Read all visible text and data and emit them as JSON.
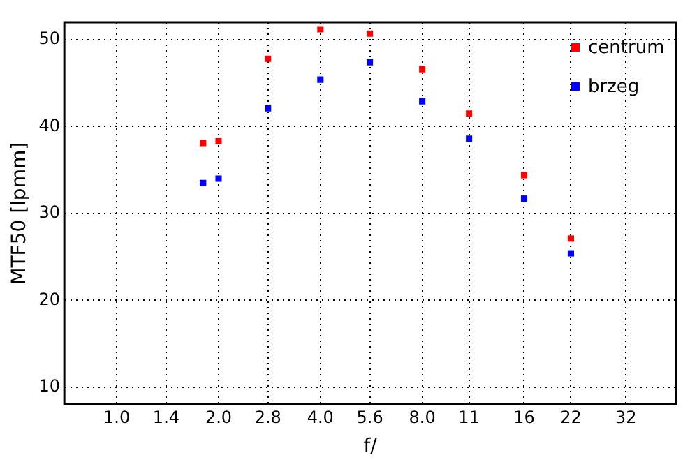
{
  "chart_data": {
    "type": "scatter",
    "xlabel": "f/",
    "ylabel": "MTF50 [lpmm]",
    "log": "x",
    "x": [
      1.8,
      2,
      2.8,
      4,
      5.6,
      8,
      11,
      16,
      22
    ],
    "series": [
      {
        "name": "centrum",
        "color": "#ff0000",
        "values": [
          38.1,
          38.3,
          47.8,
          51.2,
          50.7,
          46.6,
          41.5,
          34.4,
          27.1
        ]
      },
      {
        "name": "brzeg",
        "color": "#0000ff",
        "values": [
          33.5,
          34.0,
          42.1,
          45.4,
          47.4,
          42.9,
          38.6,
          31.7,
          25.4
        ]
      }
    ],
    "xlim": [
      0.72,
      45
    ],
    "ylim": [
      8,
      52
    ],
    "xticks": [
      {
        "value": 1,
        "label": "1.0"
      },
      1.4,
      {
        "value": 2,
        "label": "2.0"
      },
      2.8,
      {
        "value": 4,
        "label": "4.0"
      },
      5.6,
      {
        "value": 8,
        "label": "8.0"
      },
      11,
      16,
      22,
      32
    ],
    "yticks": [
      10,
      20,
      30,
      40,
      50
    ],
    "grid": true,
    "legend": "top right",
    "marker": "square"
  }
}
